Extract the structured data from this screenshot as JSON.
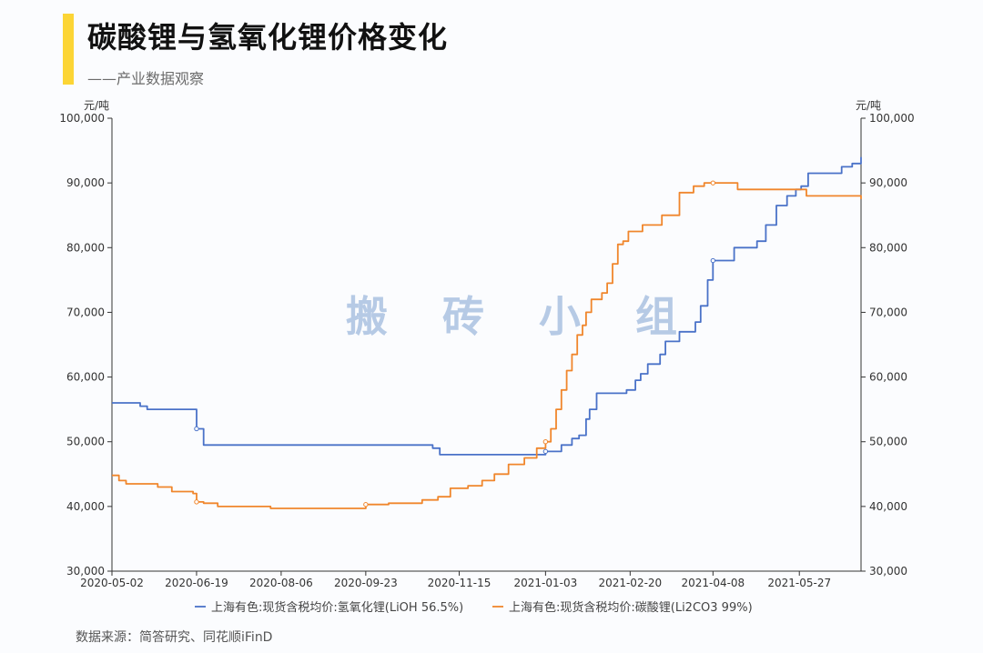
{
  "header": {
    "title": "碳酸锂与氢氧化锂价格变化",
    "subtitle": "——产业数据观察",
    "accent_color": "#fcd535"
  },
  "watermark": "搬 砖 小 组",
  "source": "数据来源：简答研究、同花顺iFinD",
  "chart_data": {
    "type": "line",
    "title": "碳酸锂与氢氧化锂价格变化",
    "y_unit_left": "元/吨",
    "y_unit_right": "元/吨",
    "ylim": [
      30000,
      100000
    ],
    "yticks": [
      "30,000",
      "40,000",
      "50,000",
      "60,000",
      "70,000",
      "80,000",
      "90,000",
      "100,000"
    ],
    "x_ticks": [
      "2020-05-02",
      "2020-06-19",
      "2020-08-06",
      "2020-09-23",
      "2020-11-15",
      "2021-01-03",
      "2021-02-20",
      "2021-04-08",
      "2021-05-27"
    ],
    "xlim": [
      "2020-05-02",
      "2021-07-01"
    ],
    "grid": false,
    "legend_position": "bottom",
    "series": [
      {
        "name": "上海有色:现货含税均价:氢氧化锂(LiOH 56.5%)",
        "color": "#4a72c8",
        "x": [
          "2020-05-02",
          "2020-05-15",
          "2020-05-18",
          "2020-05-22",
          "2020-06-17",
          "2020-06-19",
          "2020-06-23",
          "2020-07-31",
          "2020-10-31",
          "2020-11-04",
          "2020-12-31",
          "2021-01-03",
          "2021-01-12",
          "2021-01-18",
          "2021-01-22",
          "2021-01-26",
          "2021-01-28",
          "2021-02-01",
          "2021-02-08",
          "2021-02-12",
          "2021-02-18",
          "2021-02-23",
          "2021-02-26",
          "2021-03-02",
          "2021-03-09",
          "2021-03-12",
          "2021-03-20",
          "2021-03-24",
          "2021-03-29",
          "2021-04-01",
          "2021-04-05",
          "2021-04-08",
          "2021-04-14",
          "2021-04-20",
          "2021-04-26",
          "2021-05-03",
          "2021-05-08",
          "2021-05-14",
          "2021-05-20",
          "2021-05-25",
          "2021-05-28",
          "2021-06-01",
          "2021-06-08",
          "2021-06-14",
          "2021-06-20",
          "2021-06-26",
          "2021-07-01"
        ],
        "values": [
          56000,
          56000,
          55500,
          55000,
          55000,
          52000,
          49500,
          49500,
          49000,
          48000,
          48000,
          48500,
          49500,
          50500,
          51000,
          53500,
          55000,
          57500,
          57500,
          57500,
          58000,
          59500,
          60500,
          62000,
          63500,
          65500,
          67000,
          67000,
          68500,
          71000,
          75000,
          78000,
          78000,
          80000,
          80000,
          81000,
          83500,
          86500,
          88000,
          89000,
          89500,
          91500,
          91500,
          91500,
          92500,
          93000,
          94000
        ]
      },
      {
        "name": "上海有色:现货含税均价:碳酸锂(Li2CO3 99%)",
        "color": "#f0862c",
        "x": [
          "2020-05-02",
          "2020-05-06",
          "2020-05-10",
          "2020-05-20",
          "2020-05-28",
          "2020-06-05",
          "2020-06-17",
          "2020-06-19",
          "2020-06-23",
          "2020-07-01",
          "2020-07-21",
          "2020-07-31",
          "2020-08-10",
          "2020-09-23",
          "2020-10-06",
          "2020-10-25",
          "2020-11-03",
          "2020-11-10",
          "2020-11-20",
          "2020-11-28",
          "2020-12-05",
          "2020-12-13",
          "2020-12-22",
          "2020-12-29",
          "2021-01-03",
          "2021-01-06",
          "2021-01-09",
          "2021-01-12",
          "2021-01-15",
          "2021-01-18",
          "2021-01-21",
          "2021-01-24",
          "2021-01-26",
          "2021-01-29",
          "2021-02-01",
          "2021-02-04",
          "2021-02-07",
          "2021-02-10",
          "2021-02-13",
          "2021-02-16",
          "2021-02-19",
          "2021-02-22",
          "2021-02-27",
          "2021-03-02",
          "2021-03-10",
          "2021-03-20",
          "2021-03-24",
          "2021-03-28",
          "2021-04-03",
          "2021-04-08",
          "2021-04-14",
          "2021-04-22",
          "2021-05-03",
          "2021-05-20",
          "2021-05-31",
          "2021-07-01"
        ],
        "values": [
          44800,
          44000,
          43500,
          43500,
          43000,
          42300,
          42000,
          40700,
          40500,
          40000,
          40000,
          39700,
          39700,
          40300,
          40500,
          41000,
          41500,
          42800,
          43200,
          44000,
          45000,
          46500,
          47500,
          49000,
          50000,
          52000,
          55000,
          58000,
          61000,
          63500,
          66500,
          68000,
          70000,
          72000,
          72000,
          73000,
          74500,
          77500,
          80500,
          81000,
          82500,
          82500,
          83500,
          83500,
          85000,
          88500,
          88500,
          89500,
          90000,
          90000,
          90000,
          89000,
          89000,
          89000,
          88000,
          87500
        ]
      }
    ]
  }
}
